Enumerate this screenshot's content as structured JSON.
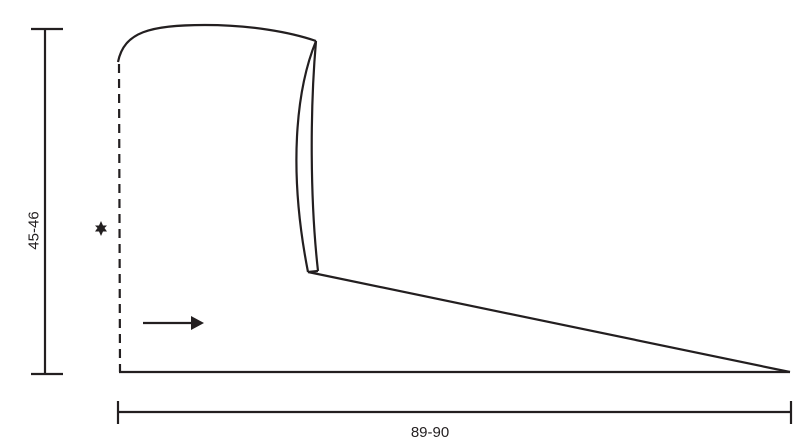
{
  "diagram": {
    "height_label": "45-46",
    "width_label": "89-90",
    "marker_icon": "star",
    "direction_icon": "arrow-right",
    "line_color": "#231f20"
  }
}
